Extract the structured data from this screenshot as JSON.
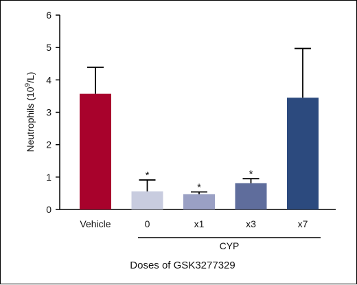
{
  "chart_data": {
    "type": "bar",
    "ylabel": {
      "main": "Neutrophils (10",
      "sup": "9",
      "tail": "/L)"
    },
    "xlabel": "Doses of GSK3277329",
    "group_label": "CYP",
    "ylim": [
      0,
      6
    ],
    "yticks": [
      "0",
      "1",
      "2",
      "3",
      "4",
      "5",
      "6"
    ],
    "categories": [
      "Vehicle",
      "0",
      "x1",
      "x3",
      "x7"
    ],
    "values": [
      3.57,
      0.56,
      0.47,
      0.81,
      3.45
    ],
    "errors": [
      0.82,
      0.35,
      0.07,
      0.14,
      1.52
    ],
    "annotations": [
      "",
      "*",
      "*",
      "*",
      ""
    ],
    "colors": [
      "#a8022c",
      "#c8ccdf",
      "#9aa0c4",
      "#5f6d9c",
      "#2c4a7e"
    ],
    "grid": false
  }
}
